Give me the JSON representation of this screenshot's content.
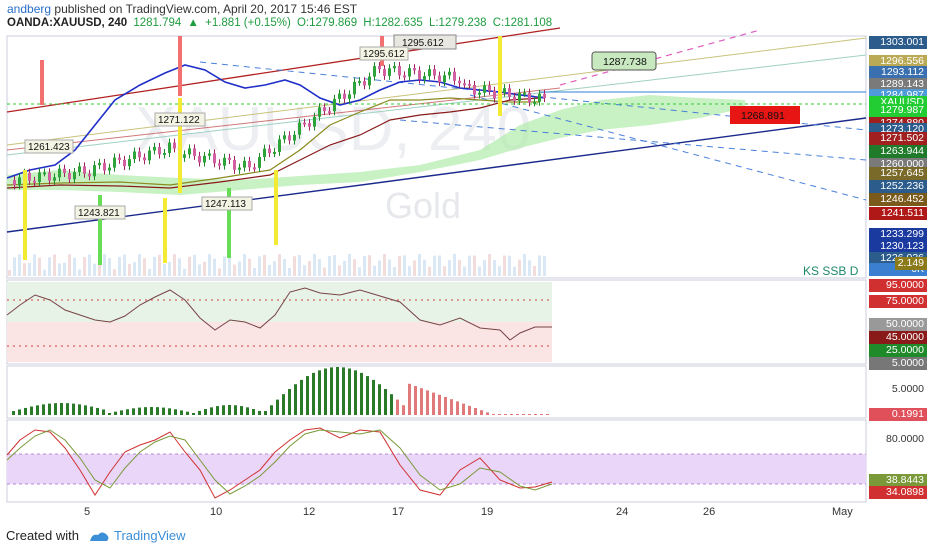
{
  "header": {
    "author": "andberg",
    "published_text": "published on TradingView.com, April 20, 2017 15:46 EST",
    "symbol": "OANDA:XAUUSD, 240",
    "last": "1281.794",
    "change": "+1.881 (+0.15%)",
    "open": "O:1279.869",
    "high": "H:1282.635",
    "low": "L:1279.238",
    "close": "C:1281.108"
  },
  "watermark": {
    "symbol": "XAUUSD, 240",
    "name": "Gold"
  },
  "price_axis": {
    "labels": [
      "1303.001",
      "1296.556",
      "1293.112",
      "1289.143",
      "1284.987",
      "XAUUSD",
      "1279.987",
      "1274.880",
      "1273.120",
      "1271.502",
      "1263.944",
      "1260.000",
      "1257.645",
      "1252.236",
      "1246.452",
      "1241.511",
      "1233.299",
      "1230.123",
      "1226.036",
      "6K"
    ],
    "volume_label": "2.149",
    "indicator_name": "KS SSB D"
  },
  "annotations": [
    "1295.612",
    "1287.738",
    "1271.122",
    "1261.423",
    "1243.821",
    "1247.113",
    "1268.891",
    "1295.612"
  ],
  "rsi_axis": [
    "95.0000",
    "75.0000",
    "50.0000",
    "45.0000",
    "25.0000",
    "5.0000"
  ],
  "macd_axis": [
    "5.0000",
    "0.1991"
  ],
  "stoch_axis": [
    "80.0000",
    "38.8443",
    "34.0898"
  ],
  "time_axis": [
    "5",
    "10",
    "12",
    "17",
    "19",
    "24",
    "26",
    "May"
  ],
  "footer": {
    "created_with": "Created with",
    "brand": "TradingView"
  }
}
